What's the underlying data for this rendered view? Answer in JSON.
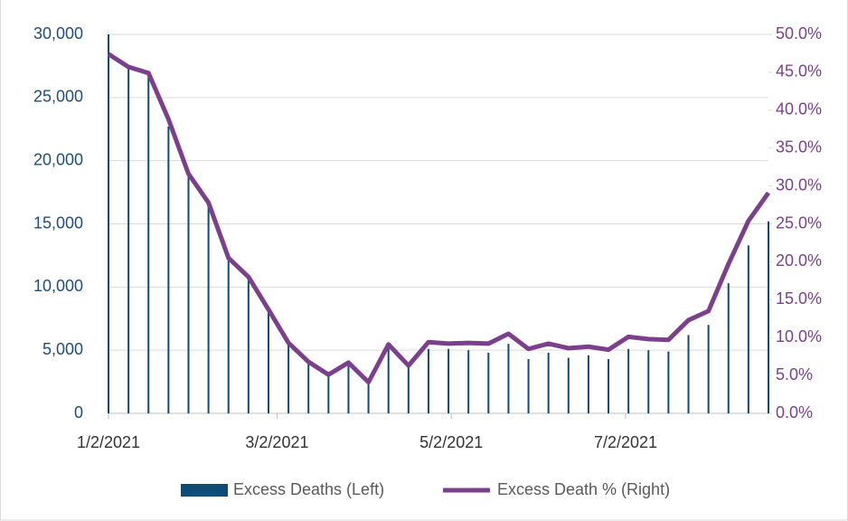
{
  "chart_data": {
    "type": "bar-line",
    "x": [
      "1/2/2021",
      "1/9/2021",
      "1/16/2021",
      "1/23/2021",
      "1/30/2021",
      "2/6/2021",
      "2/13/2021",
      "2/20/2021",
      "2/27/2021",
      "3/6/2021",
      "3/13/2021",
      "3/20/2021",
      "3/27/2021",
      "4/3/2021",
      "4/10/2021",
      "4/17/2021",
      "4/24/2021",
      "5/1/2021",
      "5/8/2021",
      "5/15/2021",
      "5/22/2021",
      "5/29/2021",
      "6/5/2021",
      "6/12/2021",
      "6/19/2021",
      "6/26/2021",
      "7/3/2021",
      "7/10/2021",
      "7/17/2021",
      "7/24/2021",
      "7/31/2021",
      "8/7/2021",
      "8/14/2021",
      "8/21/2021"
    ],
    "series": [
      {
        "name": "Excess Deaths (Left)",
        "color": "#0f4c75",
        "kind": "bar",
        "axis": "y",
        "values": [
          30000,
          27400,
          27000,
          22700,
          18800,
          16600,
          12300,
          10900,
          8200,
          5500,
          4100,
          3100,
          3900,
          2300,
          5300,
          3700,
          5100,
          5100,
          5000,
          4800,
          5500,
          4300,
          4800,
          4400,
          4600,
          4300,
          5100,
          5000,
          4900,
          6200,
          7000,
          10300,
          13300,
          15200
        ]
      },
      {
        "name": "Excess Death % (Right)",
        "color": "#7b3f8c",
        "kind": "line",
        "axis": "y2",
        "values": [
          47.4,
          45.7,
          44.9,
          38.8,
          31.6,
          27.8,
          20.5,
          18.0,
          13.7,
          9.3,
          6.8,
          5.1,
          6.7,
          4.1,
          9.1,
          6.3,
          9.4,
          9.2,
          9.3,
          9.2,
          10.5,
          8.5,
          9.2,
          8.6,
          8.8,
          8.4,
          10.1,
          9.8,
          9.7,
          12.3,
          13.5,
          19.7,
          25.4,
          29.1
        ]
      }
    ],
    "xlim": [
      "1/2/2021",
      "8/21/2021"
    ],
    "xticks": [
      "1/2/2021",
      "3/2/2021",
      "5/2/2021",
      "7/2/2021"
    ],
    "ylim": [
      0,
      30000
    ],
    "yticks": [
      0,
      {
        "value": 5000,
        "label": "5,000"
      },
      {
        "value": 10000,
        "label": "10,000"
      },
      {
        "value": 15000,
        "label": "15,000"
      },
      {
        "value": 20000,
        "label": "20,000"
      },
      {
        "value": 25000,
        "label": "25,000"
      },
      {
        "value": 30000,
        "label": "30,000"
      }
    ],
    "y2lim": [
      0,
      50
    ],
    "y2ticks": [
      {
        "value": 0,
        "label": "0.0%"
      },
      {
        "value": 5,
        "label": "5.0%"
      },
      {
        "value": 10,
        "label": "10.0%"
      },
      {
        "value": 15,
        "label": "15.0%"
      },
      {
        "value": 20,
        "label": "20.0%"
      },
      {
        "value": 25,
        "label": "25.0%"
      },
      {
        "value": 30,
        "label": "30.0%"
      },
      {
        "value": 35,
        "label": "35.0%"
      },
      {
        "value": 40,
        "label": "40.0%"
      },
      {
        "value": 45,
        "label": "45.0%"
      },
      {
        "value": 50,
        "label": "50.0%"
      }
    ],
    "grid": true,
    "legend": "bottom"
  }
}
